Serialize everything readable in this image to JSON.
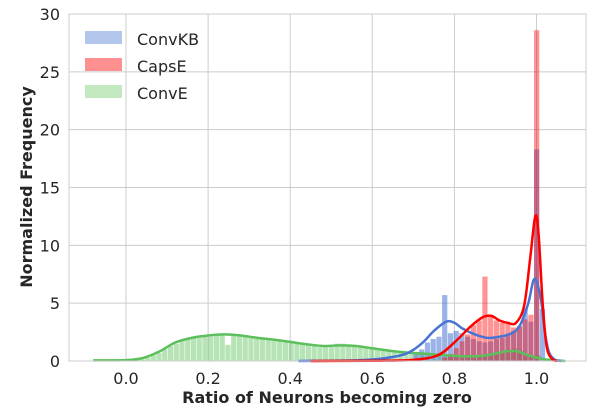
{
  "chart_data": {
    "type": "histogram",
    "title": "",
    "xlabel": "Ratio of Neurons becoming zero",
    "ylabel": "Normalized Frequency",
    "xlim": [
      -0.11,
      1.15
    ],
    "ylim": [
      0,
      30
    ],
    "xticks": [
      0.0,
      0.2,
      0.4,
      0.6,
      0.8,
      1.0
    ],
    "xtick_labels": [
      "0.0",
      "0.2",
      "0.4",
      "0.6",
      "0.8",
      "1.0"
    ],
    "yticks": [
      0,
      5,
      10,
      15,
      20,
      25,
      30
    ],
    "ytick_labels": [
      "0",
      "5",
      "10",
      "15",
      "20",
      "25",
      "30"
    ],
    "grid": true,
    "legend_position": "upper left",
    "series": [
      {
        "name": "ConvKB",
        "color": "#4a74d4",
        "bar_color": "#b3c6eb",
        "bin_width": 0.0142,
        "bins": [
          [
            0.7,
            0.6
          ],
          [
            0.714,
            1.0
          ],
          [
            0.728,
            1.6
          ],
          [
            0.742,
            1.9
          ],
          [
            0.756,
            2.1
          ],
          [
            0.77,
            5.7
          ],
          [
            0.784,
            2.4
          ],
          [
            0.798,
            2.6
          ],
          [
            0.812,
            2.4
          ],
          [
            0.826,
            2.1
          ],
          [
            0.84,
            1.9
          ],
          [
            0.854,
            1.7
          ],
          [
            0.868,
            1.6
          ],
          [
            0.882,
            1.7
          ],
          [
            0.896,
            1.9
          ],
          [
            0.91,
            2.0
          ],
          [
            0.924,
            2.2
          ],
          [
            0.938,
            2.6
          ],
          [
            0.952,
            3.0
          ],
          [
            0.966,
            4.6
          ],
          [
            0.98,
            3.4
          ],
          [
            0.994,
            18.3
          ],
          [
            1.008,
            4.5
          ]
        ],
        "kde": [
          [
            0.42,
            0.0
          ],
          [
            0.55,
            0.05
          ],
          [
            0.62,
            0.2
          ],
          [
            0.68,
            0.6
          ],
          [
            0.72,
            1.5
          ],
          [
            0.75,
            2.6
          ],
          [
            0.78,
            3.4
          ],
          [
            0.8,
            3.3
          ],
          [
            0.82,
            2.8
          ],
          [
            0.85,
            2.3
          ],
          [
            0.88,
            2.0
          ],
          [
            0.91,
            2.1
          ],
          [
            0.94,
            2.4
          ],
          [
            0.96,
            3.1
          ],
          [
            0.98,
            5.0
          ],
          [
            0.995,
            7.1
          ],
          [
            1.01,
            5.5
          ],
          [
            1.02,
            2.6
          ],
          [
            1.03,
            0.8
          ],
          [
            1.045,
            0.1
          ],
          [
            1.06,
            0.0
          ]
        ]
      },
      {
        "name": "CapsE",
        "color": "#ff0000",
        "bar_color": "#ff9090",
        "bin_width": 0.0142,
        "bins": [
          [
            0.77,
            0.3
          ],
          [
            0.784,
            0.6
          ],
          [
            0.798,
            1.1
          ],
          [
            0.812,
            1.7
          ],
          [
            0.826,
            2.3
          ],
          [
            0.84,
            3.1
          ],
          [
            0.854,
            3.5
          ],
          [
            0.868,
            7.3
          ],
          [
            0.882,
            3.8
          ],
          [
            0.896,
            3.5
          ],
          [
            0.91,
            3.3
          ],
          [
            0.924,
            3.2
          ],
          [
            0.938,
            2.9
          ],
          [
            0.952,
            3.0
          ],
          [
            0.966,
            3.6
          ],
          [
            0.98,
            4.0
          ],
          [
            0.994,
            28.6
          ]
        ],
        "kde": [
          [
            0.45,
            0.0
          ],
          [
            0.6,
            0.02
          ],
          [
            0.7,
            0.1
          ],
          [
            0.76,
            0.5
          ],
          [
            0.8,
            1.6
          ],
          [
            0.84,
            3.0
          ],
          [
            0.87,
            3.8
          ],
          [
            0.89,
            3.9
          ],
          [
            0.91,
            3.5
          ],
          [
            0.93,
            3.3
          ],
          [
            0.95,
            3.3
          ],
          [
            0.97,
            4.8
          ],
          [
            0.985,
            9.0
          ],
          [
            0.997,
            12.5
          ],
          [
            1.005,
            11.0
          ],
          [
            1.015,
            5.0
          ],
          [
            1.025,
            1.2
          ],
          [
            1.04,
            0.1
          ],
          [
            1.05,
            0.0
          ]
        ]
      },
      {
        "name": "ConvE",
        "color": "#5bbf5b",
        "bar_color": "#b8e6b5",
        "bin_width": 0.0142,
        "bins": [
          [
            -0.01,
            0.05
          ],
          [
            0.004,
            0.08
          ],
          [
            0.018,
            0.1
          ],
          [
            0.032,
            0.15
          ],
          [
            0.046,
            0.3
          ],
          [
            0.06,
            0.5
          ],
          [
            0.074,
            0.7
          ],
          [
            0.088,
            1.0
          ],
          [
            0.102,
            1.3
          ],
          [
            0.116,
            1.5
          ],
          [
            0.13,
            1.8
          ],
          [
            0.144,
            1.9
          ],
          [
            0.158,
            2.0
          ],
          [
            0.172,
            2.0
          ],
          [
            0.186,
            2.1
          ],
          [
            0.2,
            2.1
          ],
          [
            0.214,
            2.2
          ],
          [
            0.228,
            2.3
          ],
          [
            0.242,
            1.4
          ],
          [
            0.256,
            2.3
          ],
          [
            0.27,
            2.2
          ],
          [
            0.284,
            2.1
          ],
          [
            0.298,
            2.0
          ],
          [
            0.312,
            1.9
          ],
          [
            0.326,
            1.9
          ],
          [
            0.34,
            1.8
          ],
          [
            0.354,
            1.8
          ],
          [
            0.368,
            1.7
          ],
          [
            0.382,
            1.7
          ],
          [
            0.396,
            1.6
          ],
          [
            0.41,
            1.6
          ],
          [
            0.424,
            1.5
          ],
          [
            0.438,
            1.5
          ],
          [
            0.452,
            1.4
          ],
          [
            0.466,
            1.2
          ],
          [
            0.48,
            1.3
          ],
          [
            0.494,
            1.4
          ],
          [
            0.508,
            1.5
          ],
          [
            0.522,
            1.5
          ],
          [
            0.536,
            1.4
          ],
          [
            0.55,
            1.4
          ],
          [
            0.564,
            1.3
          ],
          [
            0.578,
            1.2
          ],
          [
            0.592,
            1.1
          ],
          [
            0.606,
            1.0
          ],
          [
            0.62,
            0.9
          ],
          [
            0.634,
            0.9
          ],
          [
            0.648,
            0.8
          ],
          [
            0.662,
            0.8
          ],
          [
            0.676,
            0.7
          ],
          [
            0.69,
            0.7
          ],
          [
            0.704,
            0.6
          ],
          [
            0.718,
            0.6
          ],
          [
            0.732,
            0.5
          ],
          [
            0.746,
            0.5
          ],
          [
            0.76,
            0.6
          ],
          [
            0.774,
            0.5
          ],
          [
            0.788,
            0.4
          ],
          [
            0.802,
            0.4
          ],
          [
            0.816,
            0.4
          ],
          [
            0.83,
            0.4
          ],
          [
            0.844,
            0.4
          ],
          [
            0.858,
            0.4
          ],
          [
            0.872,
            0.5
          ],
          [
            0.886,
            0.5
          ],
          [
            0.9,
            0.6
          ],
          [
            0.914,
            0.7
          ],
          [
            0.928,
            1.0
          ],
          [
            0.942,
            1.1
          ],
          [
            0.956,
            0.9
          ],
          [
            0.97,
            0.6
          ],
          [
            0.984,
            0.4
          ],
          [
            0.998,
            0.5
          ]
        ],
        "kde": [
          [
            -0.08,
            0.05
          ],
          [
            0.0,
            0.08
          ],
          [
            0.04,
            0.25
          ],
          [
            0.08,
            0.8
          ],
          [
            0.12,
            1.6
          ],
          [
            0.16,
            2.0
          ],
          [
            0.2,
            2.2
          ],
          [
            0.24,
            2.3
          ],
          [
            0.28,
            2.2
          ],
          [
            0.32,
            2.0
          ],
          [
            0.36,
            1.85
          ],
          [
            0.4,
            1.65
          ],
          [
            0.44,
            1.45
          ],
          [
            0.48,
            1.3
          ],
          [
            0.52,
            1.35
          ],
          [
            0.56,
            1.3
          ],
          [
            0.6,
            1.1
          ],
          [
            0.64,
            0.9
          ],
          [
            0.68,
            0.75
          ],
          [
            0.72,
            0.65
          ],
          [
            0.76,
            0.55
          ],
          [
            0.8,
            0.45
          ],
          [
            0.84,
            0.4
          ],
          [
            0.88,
            0.5
          ],
          [
            0.92,
            0.8
          ],
          [
            0.95,
            0.85
          ],
          [
            0.98,
            0.5
          ],
          [
            1.01,
            0.2
          ],
          [
            1.04,
            0.08
          ],
          [
            1.07,
            0.0
          ]
        ]
      }
    ]
  },
  "legend": {
    "items": [
      {
        "label": "ConvKB",
        "color": "#b3c6eb"
      },
      {
        "label": "CapsE",
        "color": "#ff9090"
      },
      {
        "label": "ConvE",
        "color": "#c4e8c0"
      }
    ]
  }
}
